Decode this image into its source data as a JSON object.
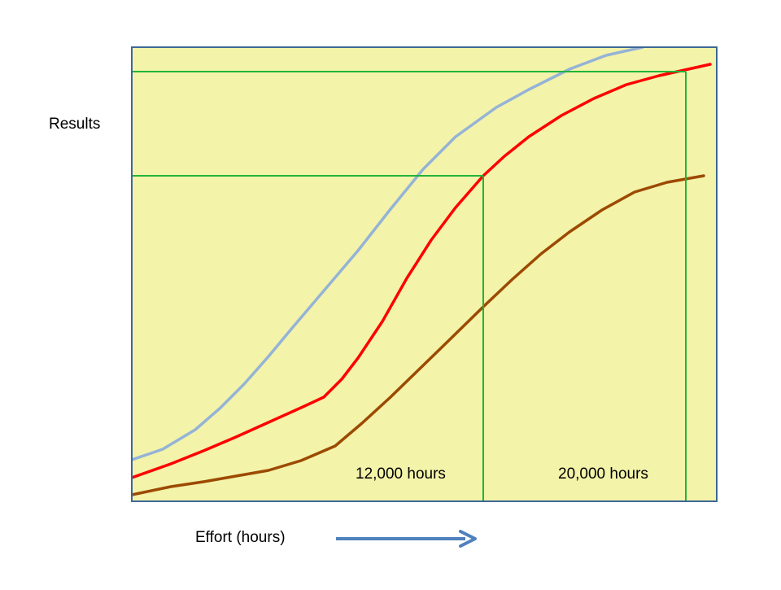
{
  "y_label": "Results",
  "x_label": "Effort (hours)",
  "markers": [
    "12,000 hours",
    "20,000 hours"
  ]
}
